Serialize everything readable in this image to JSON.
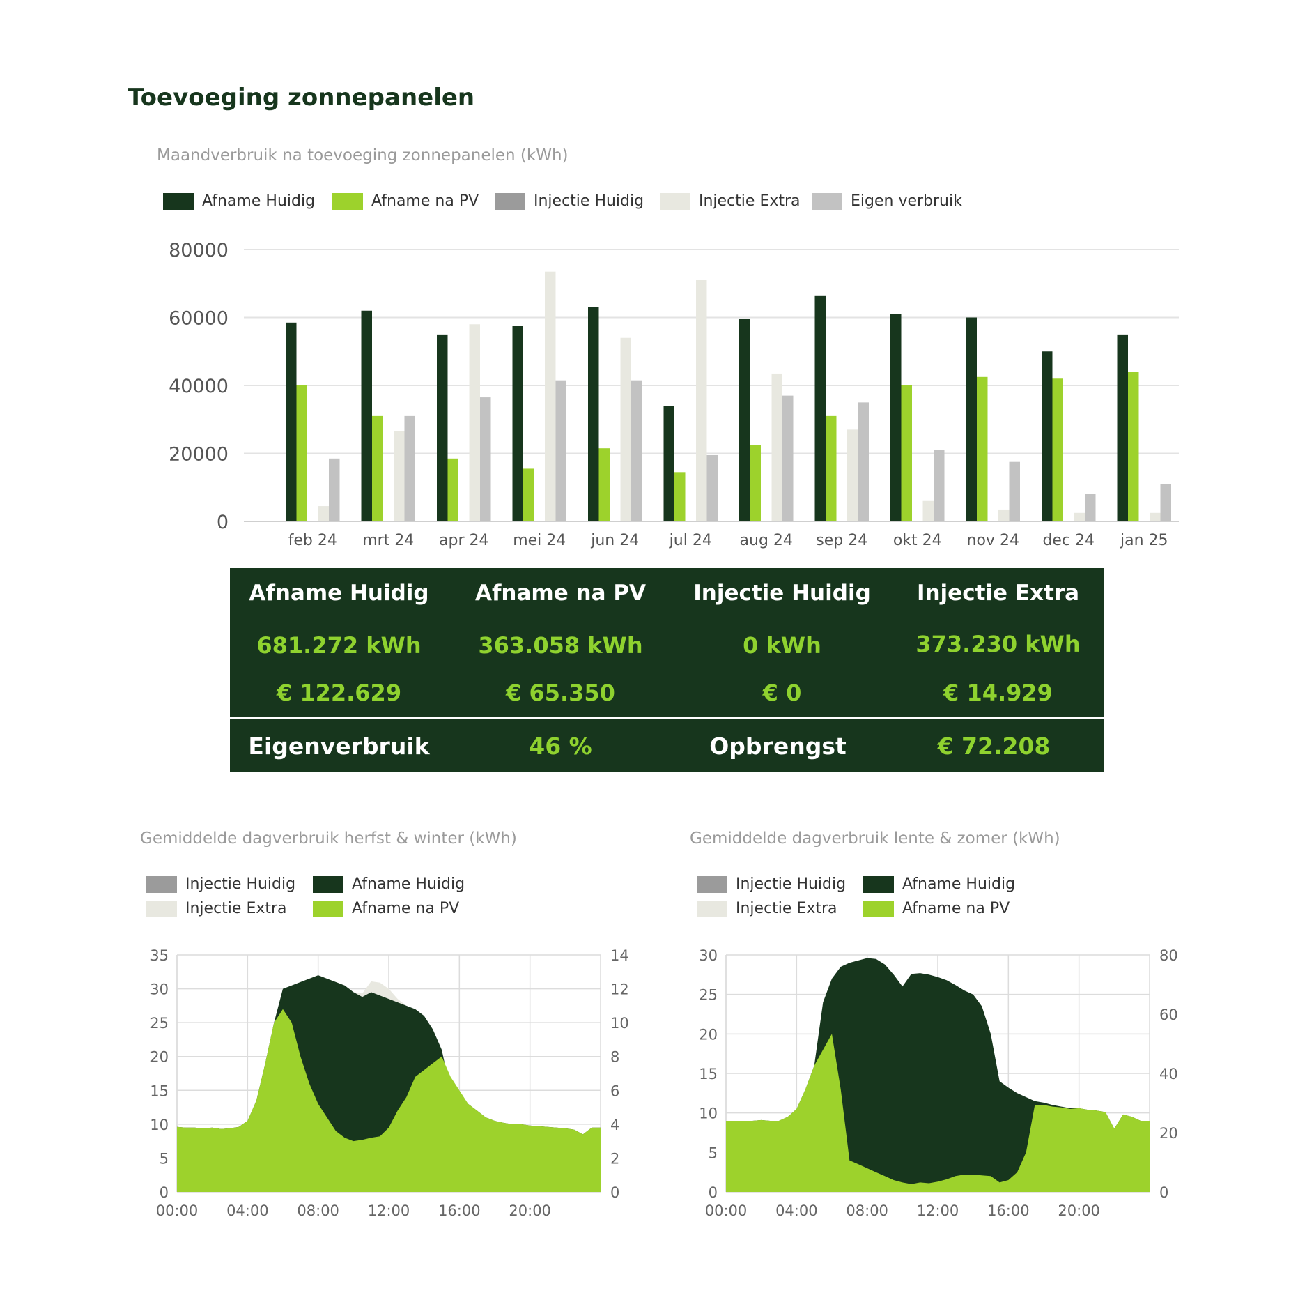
{
  "page": {
    "title": "Toevoeging zonnepanelen"
  },
  "colors": {
    "afname_huidig": "#17361d",
    "afname_na_pv": "#9dd22c",
    "injectie_huidig": "#9b9b9b",
    "injectie_extra": "#e8e8e0",
    "eigen_verbruik": "#c2c2c2",
    "summary_bg": "#17361d",
    "summary_value": "#8fd22f"
  },
  "monthly_chart": {
    "title": "Maandverbruik na toevoeging zonnepanelen (kWh)",
    "legend": [
      {
        "label": "Afname Huidig",
        "color": "#17361d"
      },
      {
        "label": "Afname na PV",
        "color": "#9dd22c"
      },
      {
        "label": "Injectie Huidig",
        "color": "#9b9b9b"
      },
      {
        "label": "Injectie Extra",
        "color": "#e8e8e0"
      },
      {
        "label": "Eigen verbruik",
        "color": "#c2c2c2"
      }
    ]
  },
  "summary": {
    "headers": [
      "Afname Huidig",
      "Afname na PV",
      "Injectie Huidig",
      "Injectie Extra"
    ],
    "kwh": [
      "681.272 kWh",
      "363.058 kWh",
      "0 kWh",
      "373.230 kWh"
    ],
    "eur": [
      "€ 122.629",
      "€ 65.350",
      "€ 0",
      "€ 14.929"
    ],
    "eigenverbruik_label": "Eigenverbruik",
    "eigenverbruik_value": "46 %",
    "opbrengst_label": "Opbrengst",
    "opbrengst_value": "€ 72.208"
  },
  "daily_autumn": {
    "title": "Gemiddelde dagverbruik herfst & winter (kWh)",
    "legend": [
      {
        "label": "Injectie Huidig",
        "color": "#9b9b9b"
      },
      {
        "label": "Afname Huidig",
        "color": "#17361d"
      },
      {
        "label": "Injectie Extra",
        "color": "#e8e8e0"
      },
      {
        "label": "Afname na PV",
        "color": "#9dd22c"
      }
    ]
  },
  "daily_spring": {
    "title": "Gemiddelde dagverbruik lente & zomer (kWh)",
    "legend": [
      {
        "label": "Injectie Huidig",
        "color": "#9b9b9b"
      },
      {
        "label": "Afname Huidig",
        "color": "#17361d"
      },
      {
        "label": "Injectie Extra",
        "color": "#e8e8e0"
      },
      {
        "label": "Afname na PV",
        "color": "#9dd22c"
      }
    ]
  },
  "chart_data": [
    {
      "type": "bar",
      "title": "Maandverbruik na toevoeging zonnepanelen (kWh)",
      "categories": [
        "feb 24",
        "mrt 24",
        "apr 24",
        "mei 24",
        "jun 24",
        "jul 24",
        "aug 24",
        "sep 24",
        "okt 24",
        "nov 24",
        "dec 24",
        "jan 25"
      ],
      "ylim": [
        0,
        80000
      ],
      "yticks": [
        0,
        20000,
        40000,
        60000,
        80000
      ],
      "grid": true,
      "legend_position": "top-left",
      "series": [
        {
          "name": "Afname Huidig",
          "color": "#17361d",
          "values": [
            58500,
            62000,
            55000,
            57500,
            63000,
            34000,
            59500,
            66500,
            61000,
            60000,
            50000,
            55000
          ]
        },
        {
          "name": "Afname na PV",
          "color": "#9dd22c",
          "values": [
            40000,
            31000,
            18500,
            15500,
            21500,
            14500,
            22500,
            31000,
            40000,
            42500,
            42000,
            44000
          ]
        },
        {
          "name": "Injectie Huidig",
          "color": "#9b9b9b",
          "values": [
            0,
            0,
            0,
            0,
            0,
            0,
            0,
            0,
            0,
            0,
            0,
            0
          ]
        },
        {
          "name": "Injectie Extra",
          "color": "#e8e8e0",
          "values": [
            4500,
            26500,
            58000,
            73500,
            54000,
            71000,
            43500,
            27000,
            6000,
            3500,
            2500,
            2500
          ]
        },
        {
          "name": "Eigen verbruik",
          "color": "#c2c2c2",
          "values": [
            18500,
            31000,
            36500,
            41500,
            41500,
            19500,
            37000,
            35000,
            21000,
            17500,
            8000,
            11000
          ]
        }
      ]
    },
    {
      "type": "area",
      "title": "Gemiddelde dagverbruik herfst & winter (kWh)",
      "x": [
        "00:00",
        "00:30",
        "01:00",
        "01:30",
        "02:00",
        "02:30",
        "03:00",
        "03:30",
        "04:00",
        "04:30",
        "05:00",
        "05:30",
        "06:00",
        "06:30",
        "07:00",
        "07:30",
        "08:00",
        "08:30",
        "09:00",
        "09:30",
        "10:00",
        "10:30",
        "11:00",
        "11:30",
        "12:00",
        "12:30",
        "13:00",
        "13:30",
        "14:00",
        "14:30",
        "15:00",
        "15:30",
        "16:00",
        "16:30",
        "17:00",
        "17:30",
        "18:00",
        "18:30",
        "19:00",
        "19:30",
        "20:00",
        "20:30",
        "21:00",
        "21:30",
        "22:00",
        "22:30",
        "23:00",
        "23:30"
      ],
      "xticks": [
        "00:00",
        "04:00",
        "08:00",
        "12:00",
        "16:00",
        "20:00"
      ],
      "ylim": [
        0,
        35
      ],
      "yticks": [
        0,
        5,
        10,
        15,
        20,
        25,
        30,
        35
      ],
      "y2lim": [
        0,
        14
      ],
      "y2ticks": [
        0,
        2,
        4,
        6,
        8,
        10,
        12,
        14
      ],
      "grid": true,
      "legend_position": "top-left",
      "series": [
        {
          "name": "Afname na PV",
          "color": "#9dd22c",
          "values": [
            9.6,
            9.5,
            9.5,
            9.4,
            9.5,
            9.3,
            9.4,
            9.6,
            10.5,
            13.5,
            19,
            25,
            27,
            25,
            20,
            16,
            13,
            11,
            9,
            8,
            7.5,
            7.7,
            8,
            8.2,
            9.5,
            12,
            14,
            17,
            18,
            19,
            20,
            17,
            15,
            13,
            12,
            11,
            10.5,
            10.2,
            10,
            10,
            9.8,
            9.7,
            9.6,
            9.5,
            9.4,
            9.2,
            8.5,
            9.5
          ]
        },
        {
          "name": "Afname Huidig",
          "color": "#17361d",
          "values": [
            9.6,
            9.5,
            9.5,
            9.4,
            9.5,
            9.3,
            9.4,
            9.6,
            10.5,
            13.5,
            19,
            25,
            30,
            30.5,
            31,
            31.5,
            32,
            31.5,
            31,
            30.5,
            29.5,
            28.8,
            29.5,
            29,
            28.5,
            28,
            27.5,
            27,
            26,
            24,
            21,
            15,
            14,
            13,
            12,
            11,
            10.5,
            10.2,
            10,
            10,
            9.8,
            9.7,
            9.6,
            9.5,
            9.4,
            9.2,
            8.5,
            9.5
          ]
        },
        {
          "name": "Injectie Huidig",
          "color": "#9b9b9b",
          "values": [
            0,
            0,
            0,
            0,
            0,
            0,
            0,
            0,
            0,
            0,
            0,
            0,
            0,
            0,
            0,
            0,
            0,
            0,
            0,
            0,
            0,
            0,
            0,
            0,
            0,
            0,
            0,
            0,
            0,
            0,
            0,
            0,
            0,
            0,
            0,
            0,
            0,
            0,
            0,
            0,
            0,
            0,
            0,
            0,
            0,
            0,
            0,
            0
          ]
        },
        {
          "name": "Injectie Extra",
          "color": "#e8e8e0",
          "values": [
            0,
            0,
            0,
            0,
            0,
            0,
            0,
            0,
            0,
            0,
            0,
            0,
            0,
            0,
            0,
            0,
            0,
            0,
            0,
            0,
            0,
            0.5,
            1.6,
            1.9,
            1.5,
            0.5,
            0,
            0,
            0,
            0,
            0,
            0,
            0,
            0,
            0,
            0,
            0,
            0,
            0,
            0,
            0,
            0,
            0,
            0,
            0,
            0,
            0,
            0
          ]
        }
      ]
    },
    {
      "type": "area",
      "title": "Gemiddelde dagverbruik lente & zomer (kWh)",
      "x": [
        "00:00",
        "00:30",
        "01:00",
        "01:30",
        "02:00",
        "02:30",
        "03:00",
        "03:30",
        "04:00",
        "04:30",
        "05:00",
        "05:30",
        "06:00",
        "06:30",
        "07:00",
        "07:30",
        "08:00",
        "08:30",
        "09:00",
        "09:30",
        "10:00",
        "10:30",
        "11:00",
        "11:30",
        "12:00",
        "12:30",
        "13:00",
        "13:30",
        "14:00",
        "14:30",
        "15:00",
        "15:30",
        "16:00",
        "16:30",
        "17:00",
        "17:30",
        "18:00",
        "18:30",
        "19:00",
        "19:30",
        "20:00",
        "20:30",
        "21:00",
        "21:30",
        "22:00",
        "22:30",
        "23:00",
        "23:30"
      ],
      "xticks": [
        "00:00",
        "04:00",
        "08:00",
        "12:00",
        "16:00",
        "20:00"
      ],
      "ylim": [
        0,
        30
      ],
      "yticks": [
        0,
        5,
        10,
        15,
        20,
        25,
        30
      ],
      "y2lim": [
        0,
        80
      ],
      "y2ticks": [
        0,
        20,
        40,
        60,
        80
      ],
      "grid": true,
      "legend_position": "top-left",
      "series": [
        {
          "name": "Afname na PV",
          "color": "#9dd22c",
          "values": [
            9,
            9,
            9,
            9,
            9.1,
            9,
            9,
            9.5,
            10.5,
            13,
            16,
            18,
            20,
            13,
            4,
            3.5,
            3,
            2.5,
            2,
            1.5,
            1.2,
            1,
            1.2,
            1.1,
            1.3,
            1.6,
            2,
            2.2,
            2.2,
            2.1,
            2,
            1.2,
            1.5,
            2.5,
            5,
            11,
            11,
            10.8,
            10.7,
            10.5,
            10.6,
            10.4,
            10.3,
            10.1,
            8,
            9.8,
            9.5,
            9
          ]
        },
        {
          "name": "Afname Huidig",
          "color": "#17361d",
          "values": [
            9,
            9,
            9,
            9,
            9.1,
            9,
            9,
            9.5,
            10.5,
            13,
            16,
            24,
            27,
            28.5,
            29,
            29.3,
            29.6,
            29.5,
            28.8,
            27.5,
            26,
            27.6,
            27.7,
            27.5,
            27.2,
            26.8,
            26.2,
            25.5,
            25,
            23.5,
            20,
            14,
            13.2,
            12.5,
            12,
            11.5,
            11.3,
            11,
            10.8,
            10.6,
            10.6,
            10.4,
            10.3,
            10.1,
            8,
            9.8,
            9.5,
            9
          ]
        },
        {
          "name": "Injectie Huidig",
          "color": "#9b9b9b",
          "values": [
            0,
            0,
            0,
            0,
            0,
            0,
            0,
            0,
            0,
            0,
            0,
            0,
            0,
            0,
            0,
            0,
            0,
            0,
            0,
            0,
            0,
            0,
            0,
            0,
            0,
            0,
            0,
            0,
            0,
            0,
            0,
            0,
            0,
            0,
            0,
            0,
            0,
            0,
            0,
            0,
            0,
            0,
            0,
            0,
            0,
            0,
            0,
            0
          ]
        }
      ]
    }
  ]
}
